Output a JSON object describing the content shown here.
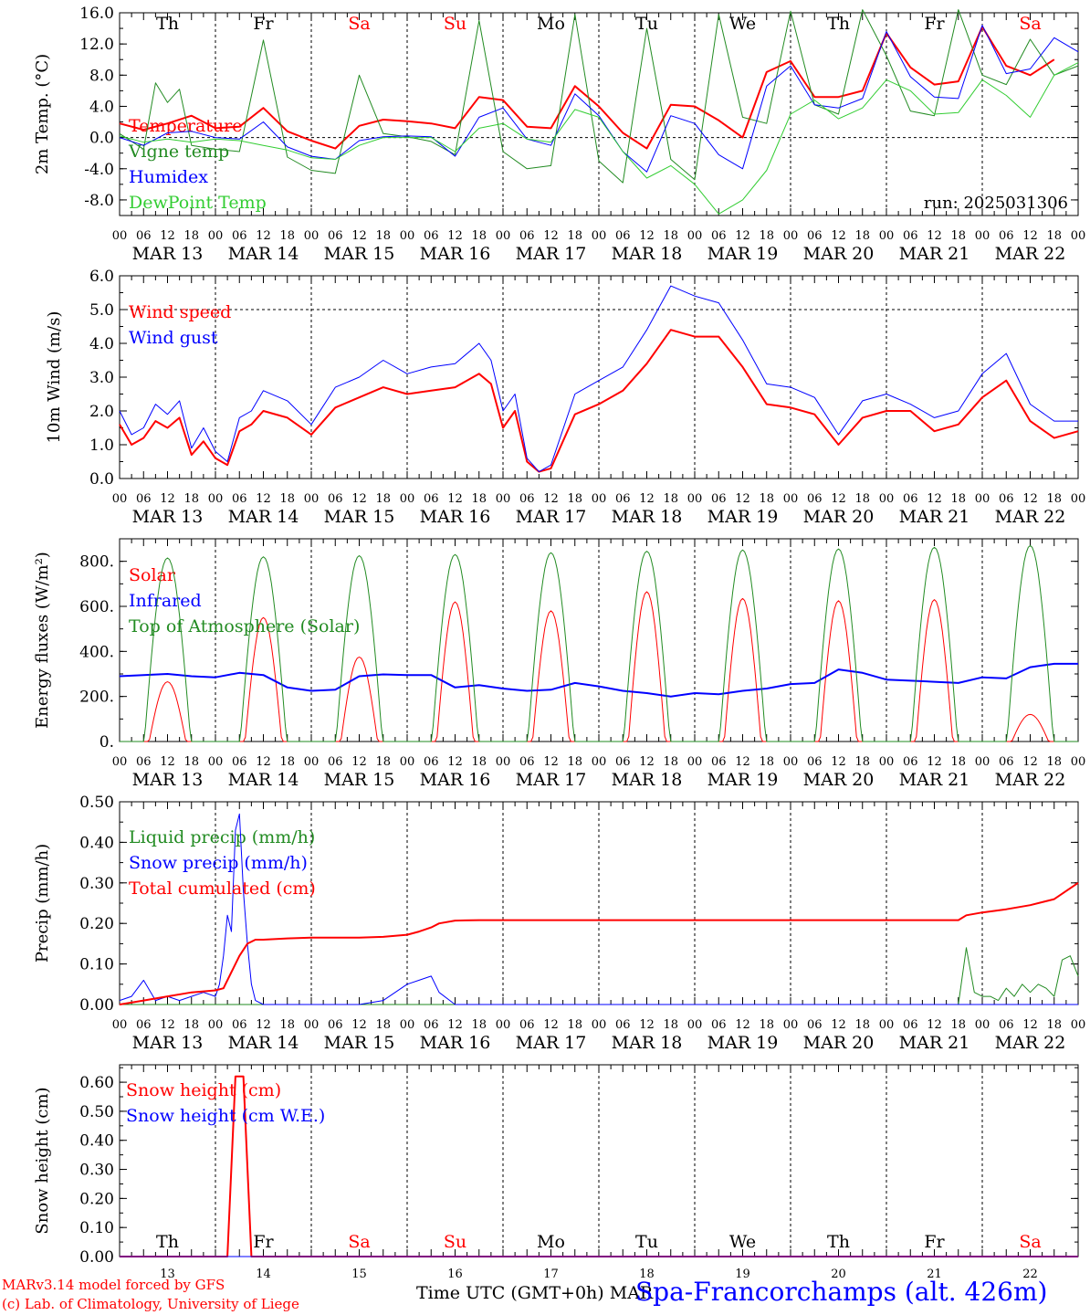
{
  "colors": {
    "red": "#ff0000",
    "green": "#228b22",
    "blue": "#0000ff",
    "lightgreen": "#32cd32",
    "black": "#000000"
  },
  "axis": {
    "hour_labels": [
      "00",
      "06",
      "12",
      "18"
    ],
    "date_labels": [
      "MAR 13",
      "MAR 14",
      "MAR 15",
      "MAR 16",
      "MAR 17",
      "MAR 18",
      "MAR 19",
      "MAR 20",
      "MAR 21",
      "MAR 22"
    ],
    "bottom_day_numbers": [
      "13",
      "14",
      "15",
      "16",
      "17",
      "18",
      "19",
      "20",
      "21",
      "22"
    ],
    "xlabel": "Time UTC (GMT+0h)",
    "xlabel_suffix": "MAR"
  },
  "days": [
    {
      "label": "Th",
      "color": "#000000"
    },
    {
      "label": "Fr",
      "color": "#000000"
    },
    {
      "label": "Sa",
      "color": "#ff0000"
    },
    {
      "label": "Su",
      "color": "#ff0000"
    },
    {
      "label": "Mo",
      "color": "#000000"
    },
    {
      "label": "Tu",
      "color": "#000000"
    },
    {
      "label": "We",
      "color": "#000000"
    },
    {
      "label": "Th",
      "color": "#000000"
    },
    {
      "label": "Fr",
      "color": "#000000"
    },
    {
      "label": "Sa",
      "color": "#ff0000"
    }
  ],
  "footer": {
    "credit_line1": "MARv3.14 model forced by GFS",
    "credit_line2": "(c) Lab. of Climatology, University of Liege",
    "station": "Spa-Francorchamps (alt. 426m)"
  },
  "chart_data": [
    {
      "type": "line",
      "ylabel": "2m Temp. (°C)",
      "ylim": [
        -10,
        16
      ],
      "yticks": [
        "16.0",
        "12.0",
        "8.0",
        "4.0",
        "0.0",
        "-4.0",
        "-8.0"
      ],
      "ytick_values": [
        16,
        12,
        8,
        4,
        0,
        -4,
        -8
      ],
      "ref_line": 0,
      "annotation": "run: 2025031306",
      "x_unit": "hours since 2025-03-13 00 UTC",
      "series": [
        {
          "name": "Temperature",
          "color": "#ff0000",
          "width": 2,
          "x": [
            0,
            6,
            12,
            18,
            24,
            30,
            36,
            42,
            48,
            54,
            60,
            66,
            72,
            78,
            84,
            90,
            96,
            102,
            108,
            114,
            120,
            126,
            132,
            138,
            144,
            150,
            156,
            162,
            168,
            174,
            180,
            186,
            192,
            198,
            204,
            210,
            216,
            222,
            228,
            234
          ],
          "y": [
            1.8,
            1.0,
            1.8,
            2.8,
            1.2,
            1.4,
            3.8,
            0.8,
            -0.4,
            -1.4,
            1.5,
            2.3,
            2.1,
            1.8,
            1.2,
            5.2,
            4.8,
            1.4,
            1.2,
            6.6,
            4.0,
            0.6,
            -1.4,
            4.2,
            4.0,
            2.2,
            0.0,
            8.4,
            9.8,
            5.2,
            5.2,
            6.0,
            13.4,
            9.0,
            6.8,
            7.2,
            14.2,
            9.2,
            8.0,
            10.0
          ]
        },
        {
          "name": "Vigne temp",
          "color": "#228b22",
          "width": 1,
          "x": [
            0,
            6,
            9,
            12,
            15,
            18,
            24,
            30,
            36,
            42,
            48,
            54,
            60,
            66,
            72,
            78,
            84,
            90,
            96,
            102,
            108,
            114,
            120,
            126,
            132,
            138,
            144,
            150,
            156,
            162,
            168,
            174,
            180,
            186,
            192,
            198,
            204,
            210,
            216,
            222,
            228,
            234,
            240
          ],
          "y": [
            0.5,
            -1.5,
            7.0,
            4.5,
            6.2,
            -1.0,
            -1.5,
            -1.8,
            12.5,
            -2.5,
            -4.2,
            -4.6,
            8.0,
            0.5,
            0.1,
            -0.5,
            -2.2,
            15.0,
            -1.8,
            -4.0,
            -3.6,
            15.8,
            -3.0,
            -5.8,
            14.0,
            -2.8,
            -5.4,
            15.8,
            2.6,
            1.8,
            16.2,
            4.2,
            3.0,
            16.4,
            10.5,
            3.4,
            2.8,
            16.4,
            8.0,
            6.8,
            12.6,
            8.0,
            9.2
          ]
        },
        {
          "name": "Humidex",
          "color": "#0000ff",
          "width": 1,
          "x": [
            0,
            6,
            12,
            18,
            24,
            30,
            36,
            42,
            48,
            54,
            60,
            66,
            72,
            78,
            84,
            90,
            96,
            102,
            108,
            114,
            120,
            126,
            132,
            138,
            144,
            150,
            156,
            162,
            168,
            174,
            180,
            186,
            192,
            198,
            204,
            210,
            216,
            222,
            228,
            234,
            240
          ],
          "y": [
            0.0,
            -1.0,
            0.6,
            0.8,
            0.0,
            -0.2,
            2.0,
            -1.2,
            -2.4,
            -2.8,
            -0.4,
            0.1,
            0.2,
            0.1,
            -2.4,
            2.6,
            3.8,
            -0.2,
            -1.0,
            5.6,
            2.8,
            -1.8,
            -4.4,
            2.8,
            1.8,
            -2.2,
            -4.0,
            6.6,
            9.2,
            4.2,
            3.8,
            5.0,
            13.6,
            7.8,
            5.2,
            5.0,
            14.4,
            8.2,
            8.8,
            12.8,
            11.0
          ]
        },
        {
          "name": "DewPoint Temp",
          "color": "#32cd32",
          "width": 1,
          "x": [
            0,
            6,
            12,
            18,
            24,
            30,
            36,
            42,
            48,
            54,
            60,
            66,
            72,
            78,
            84,
            90,
            96,
            102,
            108,
            114,
            120,
            126,
            132,
            138,
            144,
            150,
            156,
            162,
            168,
            174,
            180,
            186,
            192,
            198,
            204,
            210,
            216,
            222,
            228,
            234,
            240
          ],
          "y": [
            0.2,
            -0.6,
            -0.2,
            -0.6,
            -0.2,
            -0.4,
            -1.0,
            -1.6,
            -2.6,
            -2.8,
            -1.0,
            0.0,
            0.0,
            0.0,
            -1.8,
            1.2,
            1.8,
            -0.2,
            -0.6,
            3.6,
            2.6,
            -1.8,
            -5.2,
            -3.6,
            -6.0,
            -9.8,
            -8.0,
            -4.2,
            3.0,
            4.8,
            2.4,
            3.8,
            7.4,
            6.0,
            3.0,
            3.2,
            7.4,
            5.4,
            2.6,
            8.0,
            9.6
          ]
        }
      ]
    },
    {
      "type": "line",
      "ylabel": "10m Wind (m/s)",
      "ylim": [
        0,
        6
      ],
      "yticks": [
        "6.0",
        "5.0",
        "4.0",
        "3.0",
        "2.0",
        "1.0",
        "0.0"
      ],
      "ytick_values": [
        6,
        5,
        4,
        3,
        2,
        1,
        0
      ],
      "ref_line": 5,
      "x_unit": "hours since 2025-03-13 00 UTC",
      "series": [
        {
          "name": "Wind speed",
          "color": "#ff0000",
          "width": 2,
          "x": [
            0,
            3,
            6,
            9,
            12,
            15,
            18,
            21,
            24,
            27,
            30,
            33,
            36,
            42,
            48,
            54,
            60,
            66,
            72,
            78,
            84,
            90,
            93,
            96,
            99,
            102,
            105,
            108,
            114,
            120,
            126,
            132,
            138,
            144,
            150,
            156,
            162,
            168,
            174,
            180,
            186,
            192,
            198,
            204,
            210,
            216,
            222,
            228,
            234,
            240
          ],
          "y": [
            1.6,
            1.0,
            1.2,
            1.7,
            1.5,
            1.8,
            0.7,
            1.1,
            0.6,
            0.4,
            1.4,
            1.6,
            2.0,
            1.8,
            1.3,
            2.1,
            2.4,
            2.7,
            2.5,
            2.6,
            2.7,
            3.1,
            2.8,
            1.5,
            2.0,
            0.5,
            0.2,
            0.3,
            1.9,
            2.2,
            2.6,
            3.4,
            4.4,
            4.2,
            4.2,
            3.3,
            2.2,
            2.1,
            1.9,
            1.0,
            1.8,
            2.0,
            2.0,
            1.4,
            1.6,
            2.4,
            2.9,
            1.7,
            1.2,
            1.4
          ]
        },
        {
          "name": "Wind gust",
          "color": "#0000ff",
          "width": 1,
          "x": [
            0,
            3,
            6,
            9,
            12,
            15,
            18,
            21,
            24,
            27,
            30,
            33,
            36,
            42,
            48,
            54,
            60,
            66,
            72,
            78,
            84,
            90,
            93,
            96,
            99,
            102,
            105,
            108,
            114,
            120,
            126,
            132,
            138,
            144,
            150,
            156,
            162,
            168,
            174,
            180,
            186,
            192,
            198,
            204,
            210,
            216,
            222,
            228,
            234,
            240
          ],
          "y": [
            2.0,
            1.3,
            1.5,
            2.2,
            1.9,
            2.3,
            0.9,
            1.5,
            0.8,
            0.5,
            1.8,
            2.0,
            2.6,
            2.3,
            1.6,
            2.7,
            3.0,
            3.5,
            3.1,
            3.3,
            3.4,
            4.0,
            3.5,
            2.0,
            2.5,
            0.6,
            0.2,
            0.4,
            2.5,
            2.9,
            3.3,
            4.4,
            5.7,
            5.4,
            5.2,
            4.1,
            2.8,
            2.7,
            2.4,
            1.3,
            2.3,
            2.5,
            2.2,
            1.8,
            2.0,
            3.1,
            3.7,
            2.2,
            1.7,
            1.7
          ]
        }
      ]
    },
    {
      "type": "line",
      "ylabel": "Energy fluxes (W/m²)",
      "ylim": [
        0,
        900
      ],
      "yticks": [
        "800.",
        "600.",
        "400.",
        "200.",
        "0."
      ],
      "ytick_values": [
        800,
        600,
        400,
        200,
        0
      ],
      "x_unit": "hours since 2025-03-13 00 UTC",
      "toa_peaks": [
        815,
        820,
        825,
        830,
        838,
        845,
        850,
        855,
        862,
        870
      ],
      "solar_peaks": [
        265,
        550,
        375,
        620,
        580,
        665,
        635,
        625,
        630,
        120
      ],
      "series": [
        {
          "name": "Solar",
          "color": "#ff0000",
          "width": 1
        },
        {
          "name": "Infrared",
          "color": "#0000ff",
          "width": 2,
          "x": [
            0,
            6,
            12,
            18,
            24,
            30,
            36,
            42,
            48,
            54,
            60,
            66,
            72,
            78,
            84,
            90,
            96,
            102,
            108,
            114,
            120,
            126,
            132,
            138,
            144,
            150,
            156,
            162,
            168,
            174,
            180,
            186,
            192,
            198,
            204,
            210,
            216,
            222,
            228,
            234,
            240
          ],
          "y": [
            290,
            295,
            300,
            290,
            285,
            305,
            295,
            240,
            225,
            230,
            290,
            298,
            295,
            295,
            240,
            250,
            235,
            225,
            230,
            260,
            245,
            225,
            215,
            200,
            215,
            210,
            225,
            235,
            255,
            260,
            320,
            305,
            275,
            270,
            265,
            260,
            285,
            280,
            330,
            345,
            345
          ]
        },
        {
          "name": "Top of Atmosphere (Solar)",
          "color": "#228b22",
          "width": 1
        }
      ]
    },
    {
      "type": "line",
      "ylabel": "Precip (mm/h)",
      "ylim": [
        0,
        0.5
      ],
      "yticks": [
        "0.50",
        "0.40",
        "0.30",
        "0.20",
        "0.10",
        "0.00"
      ],
      "ytick_values": [
        0.5,
        0.4,
        0.3,
        0.2,
        0.1,
        0
      ],
      "x_unit": "hours since 2025-03-13 00 UTC",
      "series": [
        {
          "name": "Liquid precip (mm/h)",
          "color": "#228b22",
          "width": 1,
          "x": [
            0,
            210,
            212,
            214,
            216,
            218,
            220,
            222,
            224,
            226,
            228,
            230,
            232,
            234,
            236,
            238,
            240
          ],
          "y": [
            0,
            0,
            0.14,
            0.03,
            0.02,
            0.02,
            0.01,
            0.04,
            0.02,
            0.05,
            0.03,
            0.05,
            0.04,
            0.02,
            0.11,
            0.12,
            0.07
          ]
        },
        {
          "name": "Snow precip (mm/h)",
          "color": "#0000ff",
          "width": 1,
          "x": [
            0,
            3,
            6,
            9,
            12,
            15,
            18,
            21,
            24,
            25,
            26,
            27,
            28,
            29,
            30,
            31,
            32,
            33,
            34,
            36,
            42,
            48,
            60,
            66,
            69,
            72,
            75,
            78,
            80,
            84,
            240
          ],
          "y": [
            0.01,
            0.02,
            0.06,
            0.01,
            0.02,
            0.01,
            0.02,
            0.03,
            0.02,
            0.05,
            0.12,
            0.22,
            0.18,
            0.43,
            0.47,
            0.28,
            0.15,
            0.05,
            0.01,
            0.0,
            0.0,
            0.0,
            0.0,
            0.01,
            0.03,
            0.05,
            0.06,
            0.07,
            0.03,
            0.0,
            0.0
          ]
        },
        {
          "name": "Total cumulated (cm)",
          "color": "#ff0000",
          "width": 2,
          "x": [
            0,
            6,
            12,
            18,
            24,
            26,
            28,
            30,
            32,
            34,
            36,
            42,
            48,
            60,
            66,
            72,
            75,
            78,
            80,
            84,
            90,
            120,
            150,
            180,
            210,
            212,
            216,
            222,
            228,
            234,
            240
          ],
          "y": [
            0.0,
            0.01,
            0.02,
            0.03,
            0.035,
            0.04,
            0.08,
            0.12,
            0.15,
            0.16,
            0.16,
            0.163,
            0.165,
            0.165,
            0.167,
            0.172,
            0.18,
            0.19,
            0.2,
            0.207,
            0.208,
            0.208,
            0.208,
            0.208,
            0.208,
            0.22,
            0.227,
            0.235,
            0.245,
            0.26,
            0.3
          ]
        }
      ]
    },
    {
      "type": "line",
      "ylabel": "Snow height (cm)",
      "ylim": [
        0,
        0.66
      ],
      "yticks": [
        "0.60",
        "0.50",
        "0.40",
        "0.30",
        "0.20",
        "0.10",
        "0.00"
      ],
      "ytick_values": [
        0.6,
        0.5,
        0.4,
        0.3,
        0.2,
        0.1,
        0
      ],
      "x_unit": "hours since 2025-03-13 00 UTC",
      "series": [
        {
          "name": "Snow height (cm)",
          "color": "#ff0000",
          "width": 2,
          "x": [
            0,
            27,
            29,
            31,
            33,
            240
          ],
          "y": [
            0,
            0,
            0.62,
            0.62,
            0,
            0
          ]
        },
        {
          "name": "Snow height (cm W.E.)",
          "color": "#0000ff",
          "width": 1,
          "x": [
            0,
            240
          ],
          "y": [
            0,
            0
          ]
        }
      ]
    }
  ]
}
